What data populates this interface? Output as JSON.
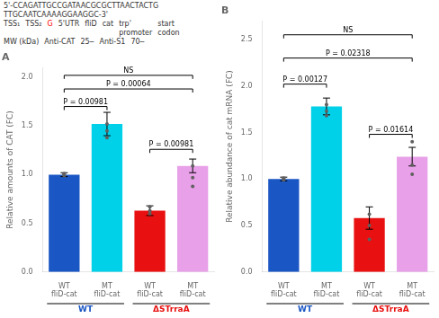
{
  "chart_data": [
    {
      "type": "bar",
      "title": "A",
      "categories": [
        "WT\nfliD-cat",
        "MT\nfliD-cat",
        "WT\nfliD-cat",
        "MT\nfliD-cat"
      ],
      "values": [
        1.0,
        1.52,
        0.63,
        1.09
      ],
      "errors": [
        0.02,
        0.12,
        0.05,
        0.07
      ],
      "points": [
        [
          0.99,
          1.0,
          1.01
        ],
        [
          1.38,
          1.45,
          1.52
        ],
        [
          0.6,
          0.63,
          0.67
        ],
        [
          0.88,
          0.97,
          1.09
        ]
      ],
      "colors": [
        "#1a56c4",
        "#00d0e8",
        "#e81010",
        "#e8a0e8"
      ],
      "ylabel": "Relative amounts of CAT (FC)",
      "ylim": [
        0,
        2.1
      ],
      "yticks": [
        {
          "value": 0,
          "label": "0.0"
        },
        {
          "value": 0.5,
          "label": "0.5"
        },
        {
          "value": 1.0,
          "label": "1.0"
        },
        {
          "value": 1.5,
          "label": "1.5"
        },
        {
          "value": 2.0,
          "label": "2.0"
        }
      ],
      "grid": false,
      "annotations": [
        {
          "text": "P = 0.00981",
          "categories": [
            0,
            1
          ],
          "y": 1.7
        },
        {
          "text": "P = 0.00064",
          "categories": [
            0,
            3
          ],
          "y": 1.88
        },
        {
          "text": "NS",
          "categories": [
            0,
            3
          ],
          "y": 2.02
        },
        {
          "text": "P = 0.00981",
          "categories": [
            2,
            3
          ],
          "y": 1.26
        },
        {
          "text": "WT",
          "categories": [
            0,
            1
          ],
          "color": "#1a56c4"
        },
        {
          "text": "ΔSTrraA",
          "categories": [
            2,
            3
          ],
          "color": "#e81010"
        },
        {
          "text": "5'-CCAGATTGCCGATAACGCGCTTAACTACTG TTGCAATCAAAAGGAAGGC-3'"
        },
        {
          "text": "TSS₁"
        },
        {
          "text": "TSS₂"
        },
        {
          "text": "G",
          "color": "red"
        },
        {
          "text": "5'UTR"
        },
        {
          "text": "fliD"
        },
        {
          "text": "cat"
        },
        {
          "text": "trp'\npromoter"
        },
        {
          "text": "start\ncodon"
        },
        {
          "text": "MW (kDa)"
        },
        {
          "text": "Anti-CAT"
        },
        {
          "text": "25─"
        },
        {
          "text": "Anti-S1"
        },
        {
          "text": "70─"
        }
      ]
    },
    {
      "type": "bar",
      "title": "B",
      "categories": [
        "WT\nfliD-cat",
        "MT\nfliD-cat",
        "WT\nfliD-cat",
        "MT\nfliD-cat"
      ],
      "values": [
        1.0,
        1.78,
        0.58,
        1.24
      ],
      "errors": [
        0.02,
        0.09,
        0.12,
        0.1
      ],
      "points": [
        [
          0.99,
          1.0,
          1.01
        ],
        [
          1.68,
          1.73,
          1.8
        ],
        [
          0.35,
          0.5,
          0.62
        ],
        [
          1.05,
          1.15,
          1.4
        ]
      ],
      "colors": [
        "#1a56c4",
        "#00d0e8",
        "#e81010",
        "#e8a0e8"
      ],
      "ylabel": "Relative abundance of cat mRNA (FC)",
      "ylim": [
        0,
        2.7
      ],
      "yticks": [
        {
          "value": 0,
          "label": "0.0"
        },
        {
          "value": 0.5,
          "label": "0.5"
        },
        {
          "value": 1.0,
          "label": "1.0"
        },
        {
          "value": 1.5,
          "label": "1.5"
        },
        {
          "value": 2.0,
          "label": "2.0"
        },
        {
          "value": 2.5,
          "label": "2.5"
        }
      ],
      "grid": false,
      "annotations": [
        {
          "text": "P = 0.00127",
          "categories": [
            0,
            1
          ],
          "y": 2.02
        },
        {
          "text": "P = 0.02318",
          "categories": [
            0,
            3
          ],
          "y": 2.3
        },
        {
          "text": "NS",
          "categories": [
            0,
            3
          ],
          "y": 2.55
        },
        {
          "text": "P = 0.01614",
          "categories": [
            2,
            3
          ],
          "y": 1.48
        },
        {
          "text": "WT",
          "categories": [
            0,
            1
          ],
          "color": "#1a56c4"
        },
        {
          "text": "ΔSTrraA",
          "categories": [
            2,
            3
          ],
          "color": "#e81010"
        }
      ]
    }
  ]
}
